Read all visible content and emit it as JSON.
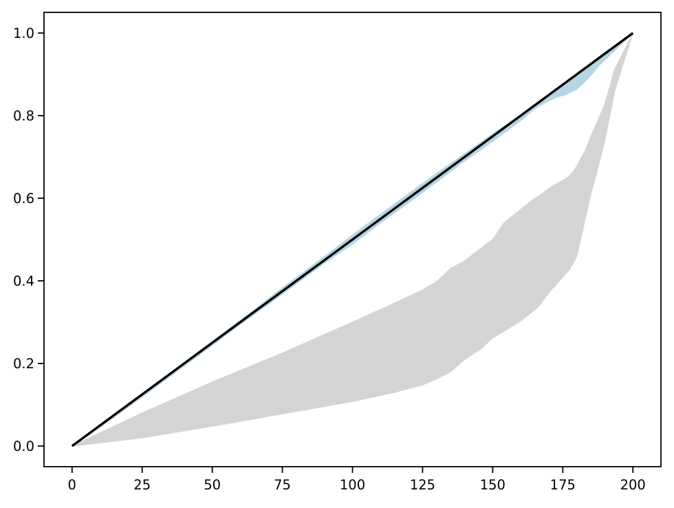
{
  "figure": {
    "background": "#ffffff",
    "plot_background": "#ffffff",
    "spine_color": "#000000",
    "spine_width": 1.8,
    "tick_color": "#000000",
    "tick_length": 9,
    "tick_width": 1.8,
    "label_color": "#000000"
  },
  "chart_data": {
    "type": "area",
    "title": "",
    "xlabel": "",
    "ylabel": "",
    "grid": false,
    "legend": null,
    "xlim": [
      -10,
      210
    ],
    "ylim": [
      -0.05,
      1.05
    ],
    "x_ticks": [
      0,
      25,
      50,
      75,
      100,
      125,
      150,
      175,
      200
    ],
    "x_tick_labels": [
      "0",
      "25",
      "50",
      "75",
      "100",
      "125",
      "150",
      "175",
      "200"
    ],
    "y_ticks": [
      0.0,
      0.2,
      0.4,
      0.6,
      0.8,
      1.0
    ],
    "y_tick_labels": [
      "0.0",
      "0.2",
      "0.4",
      "0.6",
      "0.8",
      "1.0"
    ],
    "series": [
      {
        "name": "wide-gray-band",
        "type": "band",
        "color": "#d4d4d4",
        "x": [
          0,
          25,
          50,
          75,
          100,
          115,
          125,
          130,
          135,
          140,
          146,
          150,
          154,
          160,
          165,
          166,
          171,
          172,
          175.5,
          177.5,
          179,
          180,
          183,
          185,
          187,
          190,
          193.5,
          196.5,
          200
        ],
        "y_upper": [
          0,
          0.08,
          0.155,
          0.225,
          0.3,
          0.346,
          0.378,
          0.398,
          0.43,
          0.448,
          0.48,
          0.5,
          0.54,
          0.573,
          0.6,
          0.603,
          0.628,
          0.632,
          0.645,
          0.655,
          0.667,
          0.678,
          0.715,
          0.75,
          0.78,
          0.828,
          0.912,
          0.952,
          1.0
        ],
        "y_lower": [
          0,
          0.02,
          0.048,
          0.078,
          0.108,
          0.13,
          0.148,
          0.163,
          0.18,
          0.21,
          0.236,
          0.262,
          0.278,
          0.303,
          0.33,
          0.335,
          0.38,
          0.386,
          0.413,
          0.428,
          0.447,
          0.46,
          0.55,
          0.61,
          0.66,
          0.74,
          0.86,
          0.925,
          1.0
        ]
      },
      {
        "name": "narrow-blue-band",
        "type": "band",
        "color": "#b7d5e5",
        "x": [
          0,
          10,
          25,
          40,
          50,
          60,
          75,
          90,
          100,
          110,
          125,
          140,
          150,
          160,
          165,
          170,
          173,
          176,
          180,
          184,
          188,
          192,
          196,
          200
        ],
        "y_upper": [
          0,
          0.05,
          0.126,
          0.202,
          0.253,
          0.304,
          0.383,
          0.459,
          0.511,
          0.561,
          0.636,
          0.708,
          0.756,
          0.802,
          0.827,
          0.852,
          0.866,
          0.881,
          0.902,
          0.922,
          0.943,
          0.962,
          0.981,
          1.0
        ],
        "y_lower": [
          0,
          0.046,
          0.119,
          0.194,
          0.244,
          0.295,
          0.368,
          0.443,
          0.489,
          0.54,
          0.614,
          0.69,
          0.738,
          0.788,
          0.817,
          0.836,
          0.845,
          0.851,
          0.864,
          0.89,
          0.922,
          0.948,
          0.974,
          1.0
        ]
      },
      {
        "name": "identity-line",
        "type": "line",
        "color": "#000000",
        "width": 3.4,
        "x": [
          0,
          200
        ],
        "y": [
          0,
          1.0
        ]
      }
    ]
  }
}
